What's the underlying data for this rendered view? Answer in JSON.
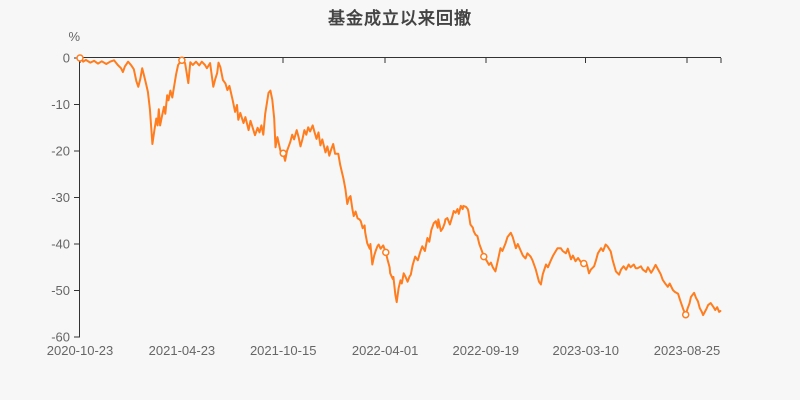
{
  "title": "基金成立以来回撤",
  "chart_data": {
    "type": "line",
    "title": "基金成立以来回撤",
    "unit": "%",
    "series_name": "基金成立以来回撤",
    "line_color": "#FF7D1E",
    "marker_fill": "#FFFFFF",
    "background_color": "#F7F7F7",
    "axis_color": "#333333",
    "label_color": "#666666",
    "grid": false,
    "legend": "none",
    "ylim": [
      -60,
      0
    ],
    "y_tick_labels": [
      "0",
      "-10",
      "-20",
      "-30",
      "-40",
      "-50",
      "-60"
    ],
    "y_tick_values": [
      0,
      -10,
      -20,
      -30,
      -40,
      -50,
      -60
    ],
    "x_tick_labels": [
      "2020-10-23",
      "2021-04-23",
      "2021-10-15",
      "2022-04-01",
      "2022-09-19",
      "2023-03-10",
      "2023-08-25"
    ],
    "x_tick_positions": [
      0.0,
      0.159,
      0.317,
      0.476,
      0.633,
      0.789,
      0.947
    ],
    "x_axis_end_tick": true,
    "markers": [
      [
        0.0,
        0.0
      ],
      [
        0.159,
        -0.5
      ],
      [
        0.317,
        -20.5
      ],
      [
        0.477,
        -41.8
      ],
      [
        0.63,
        -42.7
      ],
      [
        0.786,
        -44.2
      ],
      [
        0.945,
        -55.2
      ]
    ],
    "points": [
      [
        0.0,
        0.0
      ],
      [
        0.005,
        -0.8
      ],
      [
        0.009,
        -0.4
      ],
      [
        0.016,
        -1.0
      ],
      [
        0.022,
        -0.6
      ],
      [
        0.028,
        -1.2
      ],
      [
        0.034,
        -0.7
      ],
      [
        0.041,
        -1.3
      ],
      [
        0.047,
        -0.8
      ],
      [
        0.053,
        -0.5
      ],
      [
        0.059,
        -1.5
      ],
      [
        0.064,
        -2.2
      ],
      [
        0.067,
        -3.0
      ],
      [
        0.07,
        -1.8
      ],
      [
        0.075,
        -0.8
      ],
      [
        0.08,
        -1.6
      ],
      [
        0.084,
        -2.4
      ],
      [
        0.088,
        -5.0
      ],
      [
        0.091,
        -6.2
      ],
      [
        0.094,
        -4.5
      ],
      [
        0.097,
        -2.2
      ],
      [
        0.1,
        -3.8
      ],
      [
        0.103,
        -5.5
      ],
      [
        0.106,
        -7.3
      ],
      [
        0.109,
        -11.0
      ],
      [
        0.113,
        -18.5
      ],
      [
        0.116,
        -15.5
      ],
      [
        0.119,
        -13.0
      ],
      [
        0.121,
        -14.5
      ],
      [
        0.123,
        -11.0
      ],
      [
        0.125,
        -14.5
      ],
      [
        0.128,
        -12.5
      ],
      [
        0.131,
        -10.5
      ],
      [
        0.133,
        -12.0
      ],
      [
        0.136,
        -8.0
      ],
      [
        0.138,
        -9.1
      ],
      [
        0.141,
        -7.0
      ],
      [
        0.144,
        -8.5
      ],
      [
        0.147,
        -6.0
      ],
      [
        0.15,
        -3.5
      ],
      [
        0.153,
        -1.5
      ],
      [
        0.156,
        -0.9
      ],
      [
        0.159,
        -0.5
      ],
      [
        0.164,
        -1.1
      ],
      [
        0.169,
        -5.4
      ],
      [
        0.172,
        -0.9
      ],
      [
        0.176,
        -1.5
      ],
      [
        0.181,
        -0.8
      ],
      [
        0.186,
        -1.6
      ],
      [
        0.19,
        -0.8
      ],
      [
        0.195,
        -1.5
      ],
      [
        0.198,
        -2.2
      ],
      [
        0.203,
        -1.1
      ],
      [
        0.208,
        -6.2
      ],
      [
        0.211,
        -4.5
      ],
      [
        0.214,
        -3.2
      ],
      [
        0.216,
        -1.0
      ],
      [
        0.219,
        -2.0
      ],
      [
        0.223,
        -4.7
      ],
      [
        0.227,
        -5.5
      ],
      [
        0.23,
        -6.9
      ],
      [
        0.233,
        -6.0
      ],
      [
        0.238,
        -9.0
      ],
      [
        0.242,
        -11.6
      ],
      [
        0.245,
        -10.1
      ],
      [
        0.247,
        -13.3
      ],
      [
        0.25,
        -11.8
      ],
      [
        0.255,
        -14.0
      ],
      [
        0.258,
        -12.7
      ],
      [
        0.263,
        -15.5
      ],
      [
        0.266,
        -13.5
      ],
      [
        0.269,
        -14.8
      ],
      [
        0.273,
        -16.6
      ],
      [
        0.277,
        -15.0
      ],
      [
        0.28,
        -16.0
      ],
      [
        0.283,
        -14.5
      ],
      [
        0.286,
        -16.5
      ],
      [
        0.289,
        -12.0
      ],
      [
        0.294,
        -7.5
      ],
      [
        0.297,
        -7.0
      ],
      [
        0.3,
        -9.0
      ],
      [
        0.303,
        -13.0
      ],
      [
        0.305,
        -19.2
      ],
      [
        0.308,
        -17.0
      ],
      [
        0.313,
        -20.1
      ],
      [
        0.317,
        -20.5
      ],
      [
        0.32,
        -22.1
      ],
      [
        0.323,
        -20.0
      ],
      [
        0.328,
        -18.1
      ],
      [
        0.331,
        -16.5
      ],
      [
        0.334,
        -17.5
      ],
      [
        0.338,
        -15.5
      ],
      [
        0.341,
        -17.0
      ],
      [
        0.344,
        -19.0
      ],
      [
        0.347,
        -17.5
      ],
      [
        0.35,
        -15.5
      ],
      [
        0.353,
        -16.5
      ],
      [
        0.356,
        -14.9
      ],
      [
        0.359,
        -15.8
      ],
      [
        0.363,
        -14.5
      ],
      [
        0.366,
        -16.0
      ],
      [
        0.369,
        -17.4
      ],
      [
        0.372,
        -16.0
      ],
      [
        0.375,
        -18.8
      ],
      [
        0.378,
        -17.5
      ],
      [
        0.383,
        -20.3
      ],
      [
        0.386,
        -19.0
      ],
      [
        0.389,
        -21.0
      ],
      [
        0.392,
        -19.6
      ],
      [
        0.395,
        -18.5
      ],
      [
        0.398,
        -20.6
      ],
      [
        0.403,
        -20.6
      ],
      [
        0.406,
        -23.0
      ],
      [
        0.411,
        -26.0
      ],
      [
        0.414,
        -28.2
      ],
      [
        0.417,
        -31.4
      ],
      [
        0.42,
        -30.0
      ],
      [
        0.422,
        -29.7
      ],
      [
        0.425,
        -32.5
      ],
      [
        0.427,
        -34.0
      ],
      [
        0.43,
        -33.0
      ],
      [
        0.433,
        -34.5
      ],
      [
        0.436,
        -34.7
      ],
      [
        0.438,
        -35.1
      ],
      [
        0.441,
        -36.6
      ],
      [
        0.444,
        -36.0
      ],
      [
        0.445,
        -37.5
      ],
      [
        0.448,
        -39.8
      ],
      [
        0.452,
        -41.0
      ],
      [
        0.453,
        -40.0
      ],
      [
        0.456,
        -44.4
      ],
      [
        0.459,
        -42.5
      ],
      [
        0.461,
        -41.6
      ],
      [
        0.464,
        -40.5
      ],
      [
        0.466,
        -40.1
      ],
      [
        0.469,
        -41.0
      ],
      [
        0.473,
        -40.3
      ],
      [
        0.477,
        -41.8
      ],
      [
        0.48,
        -43.5
      ],
      [
        0.483,
        -45.0
      ],
      [
        0.484,
        -46.3
      ],
      [
        0.488,
        -47.5
      ],
      [
        0.489,
        -47.1
      ],
      [
        0.492,
        -51.0
      ],
      [
        0.494,
        -52.5
      ],
      [
        0.497,
        -49.5
      ],
      [
        0.5,
        -47.8
      ],
      [
        0.502,
        -48.5
      ],
      [
        0.505,
        -46.3
      ],
      [
        0.508,
        -47.1
      ],
      [
        0.511,
        -48.1
      ],
      [
        0.514,
        -47.0
      ],
      [
        0.516,
        -46.6
      ],
      [
        0.519,
        -44.5
      ],
      [
        0.523,
        -42.7
      ],
      [
        0.527,
        -43.5
      ],
      [
        0.531,
        -41.6
      ],
      [
        0.534,
        -40.5
      ],
      [
        0.538,
        -41.5
      ],
      [
        0.542,
        -38.7
      ],
      [
        0.545,
        -39.5
      ],
      [
        0.548,
        -37.0
      ],
      [
        0.552,
        -35.5
      ],
      [
        0.555,
        -35.1
      ],
      [
        0.558,
        -36.5
      ],
      [
        0.559,
        -34.7
      ],
      [
        0.563,
        -37.2
      ],
      [
        0.566,
        -36.6
      ],
      [
        0.569,
        -35.5
      ],
      [
        0.57,
        -34.7
      ],
      [
        0.573,
        -34.4
      ],
      [
        0.577,
        -35.8
      ],
      [
        0.581,
        -34.0
      ],
      [
        0.583,
        -32.9
      ],
      [
        0.586,
        -33.3
      ],
      [
        0.589,
        -32.5
      ],
      [
        0.591,
        -33.5
      ],
      [
        0.594,
        -31.8
      ],
      [
        0.597,
        -32.5
      ],
      [
        0.598,
        -31.8
      ],
      [
        0.602,
        -32.0
      ],
      [
        0.605,
        -32.5
      ],
      [
        0.606,
        -33.0
      ],
      [
        0.609,
        -35.8
      ],
      [
        0.613,
        -36.5
      ],
      [
        0.614,
        -37.2
      ],
      [
        0.617,
        -38.0
      ],
      [
        0.62,
        -38.3
      ],
      [
        0.623,
        -40.0
      ],
      [
        0.627,
        -41.5
      ],
      [
        0.63,
        -42.7
      ],
      [
        0.634,
        -43.5
      ],
      [
        0.638,
        -44.5
      ],
      [
        0.641,
        -44.0
      ],
      [
        0.644,
        -45.0
      ],
      [
        0.648,
        -45.9
      ],
      [
        0.652,
        -43.5
      ],
      [
        0.656,
        -40.9
      ],
      [
        0.659,
        -41.5
      ],
      [
        0.664,
        -39.8
      ],
      [
        0.667,
        -38.5
      ],
      [
        0.672,
        -37.6
      ],
      [
        0.675,
        -38.5
      ],
      [
        0.68,
        -40.9
      ],
      [
        0.683,
        -40.0
      ],
      [
        0.688,
        -41.6
      ],
      [
        0.691,
        -42.5
      ],
      [
        0.695,
        -43.1
      ],
      [
        0.698,
        -42.0
      ],
      [
        0.703,
        -42.7
      ],
      [
        0.706,
        -43.5
      ],
      [
        0.711,
        -45.5
      ],
      [
        0.716,
        -48.1
      ],
      [
        0.719,
        -48.7
      ],
      [
        0.722,
        -46.5
      ],
      [
        0.727,
        -44.4
      ],
      [
        0.73,
        -45.0
      ],
      [
        0.734,
        -43.7
      ],
      [
        0.738,
        -42.5
      ],
      [
        0.742,
        -41.6
      ],
      [
        0.745,
        -40.9
      ],
      [
        0.75,
        -40.9
      ],
      [
        0.753,
        -41.5
      ],
      [
        0.758,
        -42.0
      ],
      [
        0.761,
        -41.0
      ],
      [
        0.766,
        -43.3
      ],
      [
        0.769,
        -42.5
      ],
      [
        0.773,
        -43.7
      ],
      [
        0.777,
        -43.0
      ],
      [
        0.781,
        -43.8
      ],
      [
        0.786,
        -44.2
      ],
      [
        0.791,
        -44.5
      ],
      [
        0.794,
        -46.3
      ],
      [
        0.797,
        -45.5
      ],
      [
        0.802,
        -44.8
      ],
      [
        0.805,
        -43.5
      ],
      [
        0.808,
        -42.0
      ],
      [
        0.813,
        -40.9
      ],
      [
        0.816,
        -41.5
      ],
      [
        0.82,
        -40.1
      ],
      [
        0.823,
        -40.5
      ],
      [
        0.828,
        -41.6
      ],
      [
        0.831,
        -43.5
      ],
      [
        0.836,
        -45.9
      ],
      [
        0.841,
        -46.6
      ],
      [
        0.844,
        -45.5
      ],
      [
        0.848,
        -44.8
      ],
      [
        0.852,
        -45.5
      ],
      [
        0.856,
        -44.4
      ],
      [
        0.859,
        -45.0
      ],
      [
        0.864,
        -44.4
      ],
      [
        0.867,
        -45.2
      ],
      [
        0.87,
        -45.2
      ],
      [
        0.875,
        -44.8
      ],
      [
        0.878,
        -45.5
      ],
      [
        0.883,
        -46.0
      ],
      [
        0.886,
        -45.0
      ],
      [
        0.891,
        -46.2
      ],
      [
        0.894,
        -45.5
      ],
      [
        0.898,
        -44.5
      ],
      [
        0.902,
        -45.5
      ],
      [
        0.906,
        -46.5
      ],
      [
        0.909,
        -47.7
      ],
      [
        0.913,
        -48.5
      ],
      [
        0.917,
        -49.2
      ],
      [
        0.92,
        -48.5
      ],
      [
        0.925,
        -49.9
      ],
      [
        0.928,
        -50.3
      ],
      [
        0.933,
        -50.7
      ],
      [
        0.936,
        -52.0
      ],
      [
        0.941,
        -54.0
      ],
      [
        0.945,
        -55.2
      ],
      [
        0.948,
        -53.8
      ],
      [
        0.951,
        -52.7
      ],
      [
        0.953,
        -51.4
      ],
      [
        0.958,
        -50.5
      ],
      [
        0.961,
        -51.6
      ],
      [
        0.964,
        -52.3
      ],
      [
        0.967,
        -53.8
      ],
      [
        0.97,
        -54.6
      ],
      [
        0.972,
        -55.3
      ],
      [
        0.977,
        -54.0
      ],
      [
        0.98,
        -53.1
      ],
      [
        0.984,
        -52.7
      ],
      [
        0.988,
        -53.5
      ],
      [
        0.991,
        -54.2
      ],
      [
        0.994,
        -53.6
      ],
      [
        0.997,
        -54.6
      ],
      [
        0.999,
        -54.4
      ]
    ]
  }
}
